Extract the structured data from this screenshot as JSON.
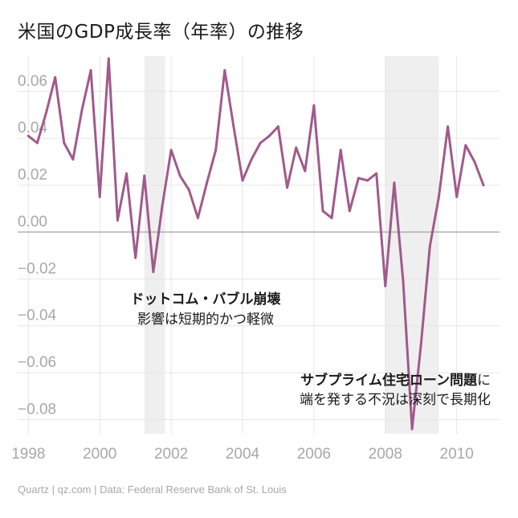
{
  "title": "米国のGDP成長率（年率）の推移",
  "footer": "Quartz | qz.com | Data: Federal Reserve Bank of St. Louis",
  "colors": {
    "line": "#a05a8c",
    "recession": "#efefef",
    "grid": "#e6e6e6",
    "zero": "#9a9a9a",
    "tick": "#a8a8a8"
  },
  "chart_data": {
    "type": "line",
    "title": "米国のGDP成長率（年率）の推移",
    "xlabel": "",
    "ylabel": "",
    "xlim": [
      1997.7,
      2011.2
    ],
    "ylim": [
      -0.086,
      0.075
    ],
    "x_ticks": [
      1998,
      2000,
      2002,
      2004,
      2006,
      2008,
      2010
    ],
    "y_ticks": [
      0.06,
      0.04,
      0.02,
      0.0,
      -0.02,
      -0.04,
      -0.06,
      -0.08
    ],
    "y_tick_labels": [
      "0.06",
      "0.04",
      "0.02",
      "0.00",
      "−0.02",
      "−0.04",
      "−0.06",
      "−0.08"
    ],
    "grid": true,
    "recessions": [
      {
        "start": 2001.25,
        "end": 2001.83
      },
      {
        "start": 2008.0,
        "end": 2009.5
      }
    ],
    "annotations": [
      {
        "bold": "ドットコム・バブル崩壊",
        "text": "影響は短期的かつ軽微"
      },
      {
        "bold": "サブプライム住宅ローン問題",
        "bold_suffix": "に",
        "text": "端を発する不況は深刻で長期化"
      }
    ],
    "series": [
      {
        "x": [
          1998.0,
          1998.25,
          1998.5,
          1998.75,
          1999.0,
          1999.25,
          1999.5,
          1999.75,
          2000.0,
          2000.25,
          2000.5,
          2000.75,
          2001.0,
          2001.25,
          2001.5,
          2001.75,
          2002.0,
          2002.25,
          2002.5,
          2002.75,
          2003.0,
          2003.25,
          2003.5,
          2003.75,
          2004.0,
          2004.25,
          2004.5,
          2004.75,
          2005.0,
          2005.25,
          2005.5,
          2005.75,
          2006.0,
          2006.25,
          2006.5,
          2006.75,
          2007.0,
          2007.25,
          2007.5,
          2007.75,
          2008.0,
          2008.25,
          2008.5,
          2008.75,
          2009.0,
          2009.25,
          2009.5,
          2009.75,
          2010.0,
          2010.25,
          2010.5,
          2010.75
        ],
        "values": [
          0.041,
          0.038,
          0.051,
          0.066,
          0.038,
          0.031,
          0.052,
          0.069,
          0.015,
          0.074,
          0.005,
          0.025,
          -0.011,
          0.024,
          -0.017,
          0.011,
          0.035,
          0.024,
          0.018,
          0.006,
          0.021,
          0.035,
          0.069,
          0.045,
          0.022,
          0.031,
          0.038,
          0.041,
          0.045,
          0.019,
          0.036,
          0.026,
          0.054,
          0.009,
          0.006,
          0.035,
          0.009,
          0.023,
          0.022,
          0.025,
          -0.023,
          0.021,
          -0.021,
          -0.084,
          -0.048,
          -0.006,
          0.015,
          0.045,
          0.015,
          0.037,
          0.03,
          0.02
        ]
      }
    ]
  }
}
